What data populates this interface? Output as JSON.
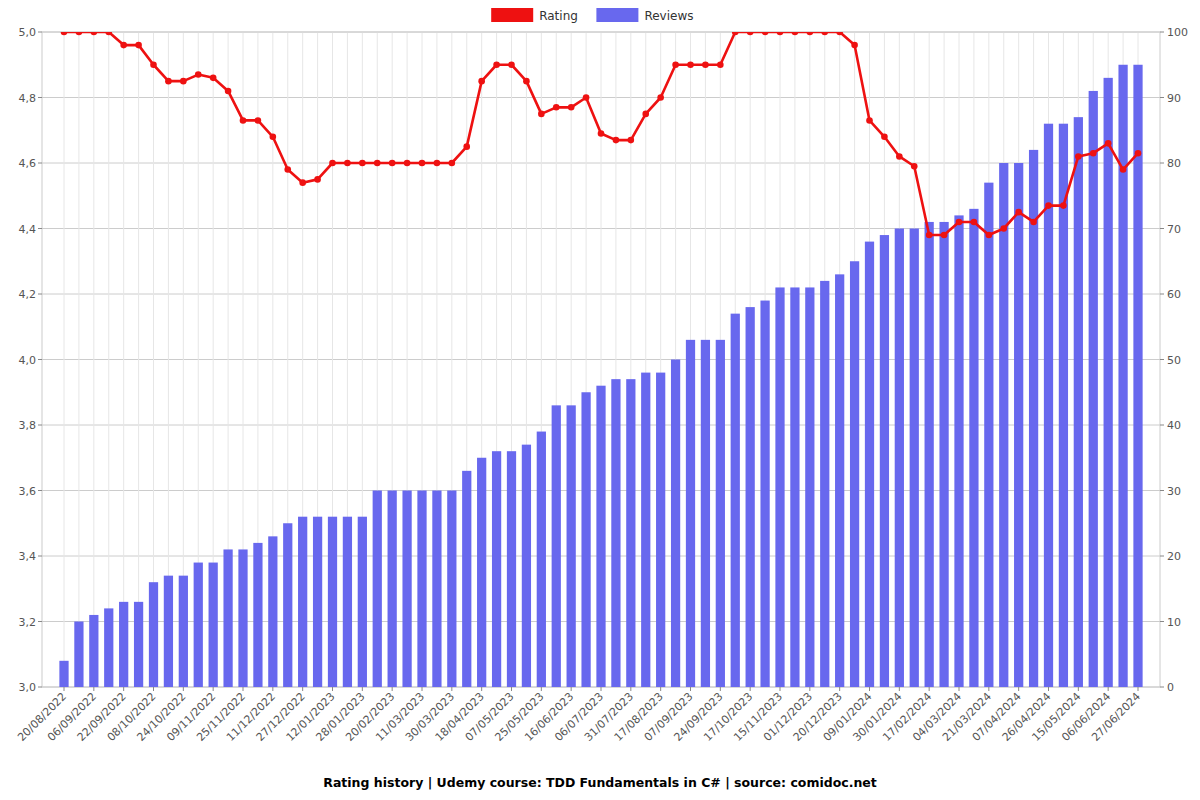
{
  "chart_data": {
    "type": "bar",
    "title": "Rating history | Udemy course: TDD Fundamentals in C# | source: comidoc.net",
    "categories": [
      "20/08/2022",
      null,
      "06/09/2022",
      null,
      "22/09/2022",
      null,
      "08/10/2022",
      null,
      "24/10/2022",
      null,
      "09/11/2022",
      null,
      "25/11/2022",
      null,
      "11/12/2022",
      null,
      "27/12/2022",
      null,
      "12/01/2023",
      null,
      "28/01/2023",
      null,
      "20/02/2023",
      null,
      "11/03/2023",
      null,
      "30/03/2023",
      null,
      "18/04/2023",
      null,
      "07/05/2023",
      null,
      "25/05/2023",
      null,
      "16/06/2023",
      null,
      "06/07/2023",
      null,
      "31/07/2023",
      null,
      "17/08/2023",
      null,
      "07/09/2023",
      null,
      "24/09/2023",
      null,
      "17/10/2023",
      null,
      "15/11/2023",
      null,
      "01/12/2023",
      null,
      "20/12/2023",
      null,
      "09/01/2024",
      null,
      "30/01/2024",
      null,
      "17/02/2024",
      null,
      "04/03/2024",
      null,
      "21/03/2024",
      null,
      "07/04/2024",
      null,
      "26/04/2024",
      null,
      "15/05/2024",
      null,
      "06/06/2024",
      null,
      "27/06/2024"
    ],
    "series": [
      {
        "name": "Rating",
        "type": "line",
        "color": "#ee1111",
        "marker": "circle",
        "values": [
          5.0,
          5.0,
          5.0,
          5.0,
          4.96,
          4.96,
          4.9,
          4.85,
          4.85,
          4.87,
          4.86,
          4.82,
          4.73,
          4.73,
          4.68,
          4.58,
          4.54,
          4.55,
          4.6,
          4.6,
          4.6,
          4.6,
          4.6,
          4.6,
          4.6,
          4.6,
          4.6,
          4.65,
          4.85,
          4.9,
          4.9,
          4.85,
          4.75,
          4.77,
          4.77,
          4.8,
          4.69,
          4.67,
          4.67,
          4.75,
          4.8,
          4.9,
          4.9,
          4.9,
          4.9,
          5.0,
          5.0,
          5.0,
          5.0,
          5.0,
          5.0,
          5.0,
          5.0,
          4.96,
          4.73,
          4.68,
          4.62,
          4.59,
          4.38,
          4.38,
          4.42,
          4.42,
          4.38,
          4.4,
          4.45,
          4.42,
          4.47,
          4.47,
          4.62,
          4.63,
          4.66,
          4.58,
          4.63
        ]
      },
      {
        "name": "Reviews",
        "type": "bar",
        "color": "#6868ee",
        "axis": "y2",
        "values": [
          4,
          10,
          11,
          12,
          13,
          13,
          16,
          17,
          17,
          19,
          19,
          21,
          21,
          22,
          23,
          25,
          26,
          26,
          26,
          26,
          26,
          30,
          30,
          30,
          30,
          30,
          30,
          33,
          35,
          36,
          36,
          37,
          39,
          43,
          43,
          45,
          46,
          47,
          47,
          48,
          48,
          50,
          53,
          53,
          53,
          57,
          58,
          59,
          61,
          61,
          61,
          62,
          63,
          65,
          68,
          69,
          70,
          70,
          71,
          71,
          72,
          73,
          77,
          80,
          80,
          82,
          86,
          86,
          87,
          91,
          93,
          95,
          95
        ]
      }
    ],
    "ylim": [
      3.0,
      5.0
    ],
    "yticks": [
      {
        "value": 3.0,
        "label": "3,0"
      },
      {
        "value": 3.2,
        "label": "3,2"
      },
      {
        "value": 3.4,
        "label": "3,4"
      },
      {
        "value": 3.6,
        "label": "3,6"
      },
      {
        "value": 3.8,
        "label": "3,8"
      },
      {
        "value": 4.0,
        "label": "4,0"
      },
      {
        "value": 4.2,
        "label": "4,2"
      },
      {
        "value": 4.4,
        "label": "4,4"
      },
      {
        "value": 4.6,
        "label": "4,6"
      },
      {
        "value": 4.8,
        "label": "4,8"
      },
      {
        "value": 5.0,
        "label": "5,0"
      }
    ],
    "y2lim": [
      0,
      100
    ],
    "y2ticks": [
      0,
      10,
      20,
      30,
      40,
      50,
      60,
      70,
      80,
      90,
      100
    ],
    "grid": true,
    "legend": "top"
  }
}
